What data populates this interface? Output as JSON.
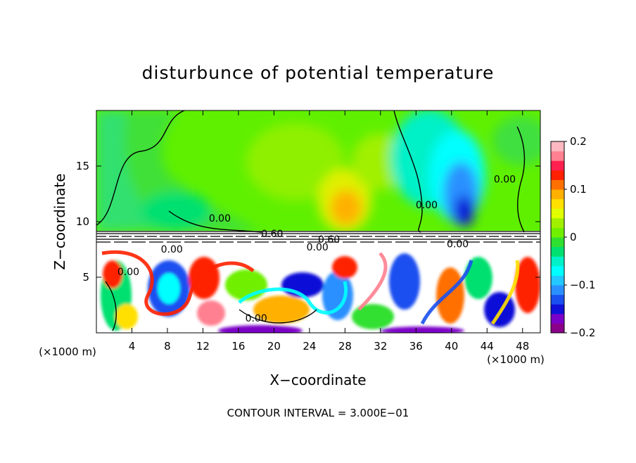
{
  "chart_data": {
    "type": "heatmap",
    "title": "disturbunce of potential temperature",
    "xlabel": "X−coordinate",
    "ylabel": "Z−coordinate",
    "x_unit": "(×1000 m)",
    "y_unit": "(×1000 m)",
    "footer": "CONTOUR INTERVAL = 3.000E−01",
    "xlim": [
      0,
      50
    ],
    "ylim": [
      0,
      20
    ],
    "x_ticks": [
      4,
      8,
      12,
      16,
      20,
      24,
      28,
      32,
      36,
      40,
      44,
      48
    ],
    "y_ticks": [
      5,
      10,
      15
    ],
    "x_tick_labels": [
      "4",
      "8",
      "12",
      "16",
      "20",
      "24",
      "28",
      "32",
      "36",
      "40",
      "44",
      "48"
    ],
    "y_tick_labels": [
      "5",
      "10",
      "15"
    ],
    "colorbar": {
      "min": -0.2,
      "max": 0.2,
      "tick_values": [
        0.2,
        0.1,
        0,
        -0.1,
        -0.2
      ],
      "tick_labels": [
        "0.2",
        "0.1",
        "0",
        "−0.1",
        "−0.2"
      ],
      "colors": [
        "#8b008b",
        "#7b00c8",
        "#1010d8",
        "#1a50f0",
        "#2b90ff",
        "#22c8ff",
        "#00ffff",
        "#00f0c8",
        "#00e070",
        "#30e030",
        "#70f000",
        "#a0f000",
        "#e0ff00",
        "#ffe000",
        "#ffb000",
        "#ff7000",
        "#ff2000",
        "#ff2050",
        "#ff8090",
        "#ffb8c0"
      ]
    },
    "contour_labels": [
      {
        "text": "0.00",
        "x": 13.9,
        "y": 10.0
      },
      {
        "text": "0.00",
        "x": 8.5,
        "y": 7.2
      },
      {
        "text": "0.00",
        "x": 3.6,
        "y": 5.2
      },
      {
        "text": "0.60",
        "x": 19.8,
        "y": 8.6
      },
      {
        "text": "0.60",
        "x": 26.2,
        "y": 8.1
      },
      {
        "text": "0.00",
        "x": 24.9,
        "y": 7.4
      },
      {
        "text": "0.00",
        "x": 18.0,
        "y": 1.0
      },
      {
        "text": "0.00",
        "x": 37.2,
        "y": 11.2
      },
      {
        "text": "0.00",
        "x": 40.7,
        "y": 7.7
      },
      {
        "text": "0.00",
        "x": 46.0,
        "y": 13.5
      }
    ]
  }
}
